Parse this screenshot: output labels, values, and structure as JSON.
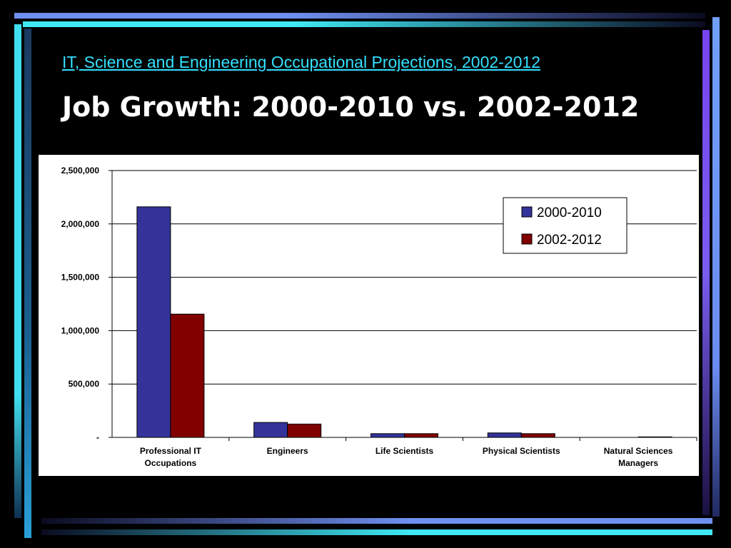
{
  "slide": {
    "subtitle_link": "IT, Science and Engineering Occupational Projections, 2002-2012",
    "title": "Job Growth: 2000-2010 vs. 2002-2012"
  },
  "chart_data": {
    "type": "bar",
    "categories": [
      [
        "Professional IT",
        "Occupations"
      ],
      [
        "Engineers"
      ],
      [
        "Life Scientists"
      ],
      [
        "Physical Scientists"
      ],
      [
        "Natural Sciences",
        "Managers"
      ]
    ],
    "series": [
      {
        "name": "2000-2010",
        "color": "#333399",
        "values": [
          2160000,
          140000,
          35000,
          42000,
          0
        ]
      },
      {
        "name": "2002-2012",
        "color": "#800000",
        "values": [
          1155000,
          125000,
          35000,
          35000,
          5000
        ]
      }
    ],
    "yticks": [
      "-",
      "500,000",
      "1,000,000",
      "1,500,000",
      "2,000,000",
      "2,500,000"
    ],
    "ylim": [
      0,
      2500000
    ],
    "grid": true,
    "legend_position": "top-right"
  }
}
